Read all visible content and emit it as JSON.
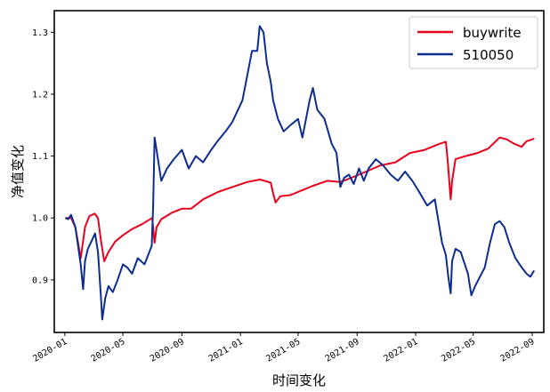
{
  "chart_data": {
    "type": "line",
    "xlabel": "时间变化",
    "ylabel": "净值变化",
    "xlim": [
      "2019-12-10",
      "2022-09-25"
    ],
    "ylim": [
      0.815,
      1.335
    ],
    "x_ticks": [
      "2020-01",
      "2020-05",
      "2020-09",
      "2021-01",
      "2021-05",
      "2021-09",
      "2022-01",
      "2022-05",
      "2022-09"
    ],
    "y_ticks": [
      0.9,
      1.0,
      1.1,
      1.2,
      1.3
    ],
    "legend_position": "upper right",
    "grid": false,
    "series": [
      {
        "name": "buywrite",
        "color": "#e8001c",
        "points": [
          [
            "2020-01-02",
            1.0
          ],
          [
            "2020-01-14",
            1.0
          ],
          [
            "2020-01-23",
            0.985
          ],
          [
            "2020-02-03",
            0.935
          ],
          [
            "2020-02-12",
            0.985
          ],
          [
            "2020-02-21",
            1.003
          ],
          [
            "2020-03-03",
            1.007
          ],
          [
            "2020-03-10",
            1.0
          ],
          [
            "2020-03-16",
            0.965
          ],
          [
            "2020-03-23",
            0.93
          ],
          [
            "2020-04-01",
            0.945
          ],
          [
            "2020-04-15",
            0.962
          ],
          [
            "2020-05-01",
            0.972
          ],
          [
            "2020-05-20",
            0.982
          ],
          [
            "2020-06-10",
            0.99
          ],
          [
            "2020-07-01",
            1.0
          ],
          [
            "2020-07-06",
            0.96
          ],
          [
            "2020-07-10",
            0.985
          ],
          [
            "2020-07-20",
            0.998
          ],
          [
            "2020-08-10",
            1.008
          ],
          [
            "2020-09-01",
            1.015
          ],
          [
            "2020-09-20",
            1.015
          ],
          [
            "2020-10-15",
            1.03
          ],
          [
            "2020-11-15",
            1.042
          ],
          [
            "2020-12-15",
            1.05
          ],
          [
            "2021-01-15",
            1.058
          ],
          [
            "2021-02-10",
            1.062
          ],
          [
            "2021-02-20",
            1.06
          ],
          [
            "2021-03-05",
            1.057
          ],
          [
            "2021-03-10",
            1.04
          ],
          [
            "2021-03-15",
            1.025
          ],
          [
            "2021-03-25",
            1.035
          ],
          [
            "2021-04-15",
            1.037
          ],
          [
            "2021-05-10",
            1.045
          ],
          [
            "2021-06-01",
            1.052
          ],
          [
            "2021-07-01",
            1.06
          ],
          [
            "2021-07-28",
            1.058
          ],
          [
            "2021-08-20",
            1.065
          ],
          [
            "2021-09-20",
            1.075
          ],
          [
            "2021-10-20",
            1.085
          ],
          [
            "2021-11-20",
            1.09
          ],
          [
            "2021-12-20",
            1.105
          ],
          [
            "2022-01-20",
            1.11
          ],
          [
            "2022-02-20",
            1.12
          ],
          [
            "2022-03-05",
            1.123
          ],
          [
            "2022-03-09",
            1.09
          ],
          [
            "2022-03-15",
            1.03
          ],
          [
            "2022-03-18",
            1.06
          ],
          [
            "2022-03-25",
            1.095
          ],
          [
            "2022-04-15",
            1.1
          ],
          [
            "2022-05-10",
            1.105
          ],
          [
            "2022-06-01",
            1.112
          ],
          [
            "2022-06-25",
            1.13
          ],
          [
            "2022-07-10",
            1.127
          ],
          [
            "2022-07-25",
            1.12
          ],
          [
            "2022-08-10",
            1.115
          ],
          [
            "2022-08-20",
            1.124
          ],
          [
            "2022-09-05",
            1.128
          ]
        ]
      },
      {
        "name": "510050",
        "color": "#0c2d8e",
        "points": [
          [
            "2020-01-02",
            1.0
          ],
          [
            "2020-01-08",
            0.998
          ],
          [
            "2020-01-14",
            1.005
          ],
          [
            "2020-01-23",
            0.985
          ],
          [
            "2020-02-03",
            0.925
          ],
          [
            "2020-02-08",
            0.885
          ],
          [
            "2020-02-12",
            0.93
          ],
          [
            "2020-02-18",
            0.95
          ],
          [
            "2020-02-24",
            0.96
          ],
          [
            "2020-03-04",
            0.975
          ],
          [
            "2020-03-10",
            0.945
          ],
          [
            "2020-03-16",
            0.875
          ],
          [
            "2020-03-19",
            0.836
          ],
          [
            "2020-03-25",
            0.87
          ],
          [
            "2020-04-01",
            0.89
          ],
          [
            "2020-04-10",
            0.88
          ],
          [
            "2020-04-20",
            0.9
          ],
          [
            "2020-05-01",
            0.925
          ],
          [
            "2020-05-10",
            0.92
          ],
          [
            "2020-05-20",
            0.91
          ],
          [
            "2020-06-01",
            0.935
          ],
          [
            "2020-06-15",
            0.925
          ],
          [
            "2020-06-30",
            0.955
          ],
          [
            "2020-07-03",
            1.02
          ],
          [
            "2020-07-06",
            1.13
          ],
          [
            "2020-07-10",
            1.11
          ],
          [
            "2020-07-20",
            1.06
          ],
          [
            "2020-08-01",
            1.08
          ],
          [
            "2020-08-15",
            1.095
          ],
          [
            "2020-09-01",
            1.11
          ],
          [
            "2020-09-15",
            1.08
          ],
          [
            "2020-09-30",
            1.1
          ],
          [
            "2020-10-15",
            1.09
          ],
          [
            "2020-11-01",
            1.11
          ],
          [
            "2020-11-15",
            1.125
          ],
          [
            "2020-12-01",
            1.14
          ],
          [
            "2020-12-15",
            1.155
          ],
          [
            "2021-01-05",
            1.19
          ],
          [
            "2021-01-15",
            1.23
          ],
          [
            "2021-01-25",
            1.27
          ],
          [
            "2021-02-05",
            1.27
          ],
          [
            "2021-02-10",
            1.31
          ],
          [
            "2021-02-18",
            1.3
          ],
          [
            "2021-02-25",
            1.25
          ],
          [
            "2021-03-05",
            1.22
          ],
          [
            "2021-03-10",
            1.19
          ],
          [
            "2021-03-20",
            1.16
          ],
          [
            "2021-04-01",
            1.14
          ],
          [
            "2021-04-15",
            1.15
          ],
          [
            "2021-05-01",
            1.16
          ],
          [
            "2021-05-10",
            1.13
          ],
          [
            "2021-05-25",
            1.19
          ],
          [
            "2021-06-01",
            1.21
          ],
          [
            "2021-06-10",
            1.175
          ],
          [
            "2021-06-25",
            1.16
          ],
          [
            "2021-07-10",
            1.12
          ],
          [
            "2021-07-20",
            1.105
          ],
          [
            "2021-07-28",
            1.05
          ],
          [
            "2021-08-05",
            1.065
          ],
          [
            "2021-08-15",
            1.07
          ],
          [
            "2021-08-25",
            1.055
          ],
          [
            "2021-09-05",
            1.08
          ],
          [
            "2021-09-15",
            1.06
          ],
          [
            "2021-09-25",
            1.08
          ],
          [
            "2021-10-10",
            1.095
          ],
          [
            "2021-10-25",
            1.085
          ],
          [
            "2021-11-10",
            1.07
          ],
          [
            "2021-11-25",
            1.06
          ],
          [
            "2021-12-10",
            1.075
          ],
          [
            "2021-12-25",
            1.06
          ],
          [
            "2022-01-10",
            1.04
          ],
          [
            "2022-01-25",
            1.02
          ],
          [
            "2022-02-10",
            1.03
          ],
          [
            "2022-02-25",
            0.96
          ],
          [
            "2022-03-05",
            0.94
          ],
          [
            "2022-03-10",
            0.905
          ],
          [
            "2022-03-15",
            0.878
          ],
          [
            "2022-03-18",
            0.93
          ],
          [
            "2022-03-25",
            0.95
          ],
          [
            "2022-04-05",
            0.945
          ],
          [
            "2022-04-20",
            0.91
          ],
          [
            "2022-04-27",
            0.875
          ],
          [
            "2022-05-05",
            0.89
          ],
          [
            "2022-05-15",
            0.905
          ],
          [
            "2022-05-25",
            0.92
          ],
          [
            "2022-06-05",
            0.96
          ],
          [
            "2022-06-15",
            0.99
          ],
          [
            "2022-06-25",
            0.995
          ],
          [
            "2022-07-05",
            0.985
          ],
          [
            "2022-07-15",
            0.96
          ],
          [
            "2022-07-28",
            0.935
          ],
          [
            "2022-08-10",
            0.92
          ],
          [
            "2022-08-20",
            0.91
          ],
          [
            "2022-08-28",
            0.905
          ],
          [
            "2022-09-05",
            0.915
          ]
        ]
      }
    ]
  }
}
